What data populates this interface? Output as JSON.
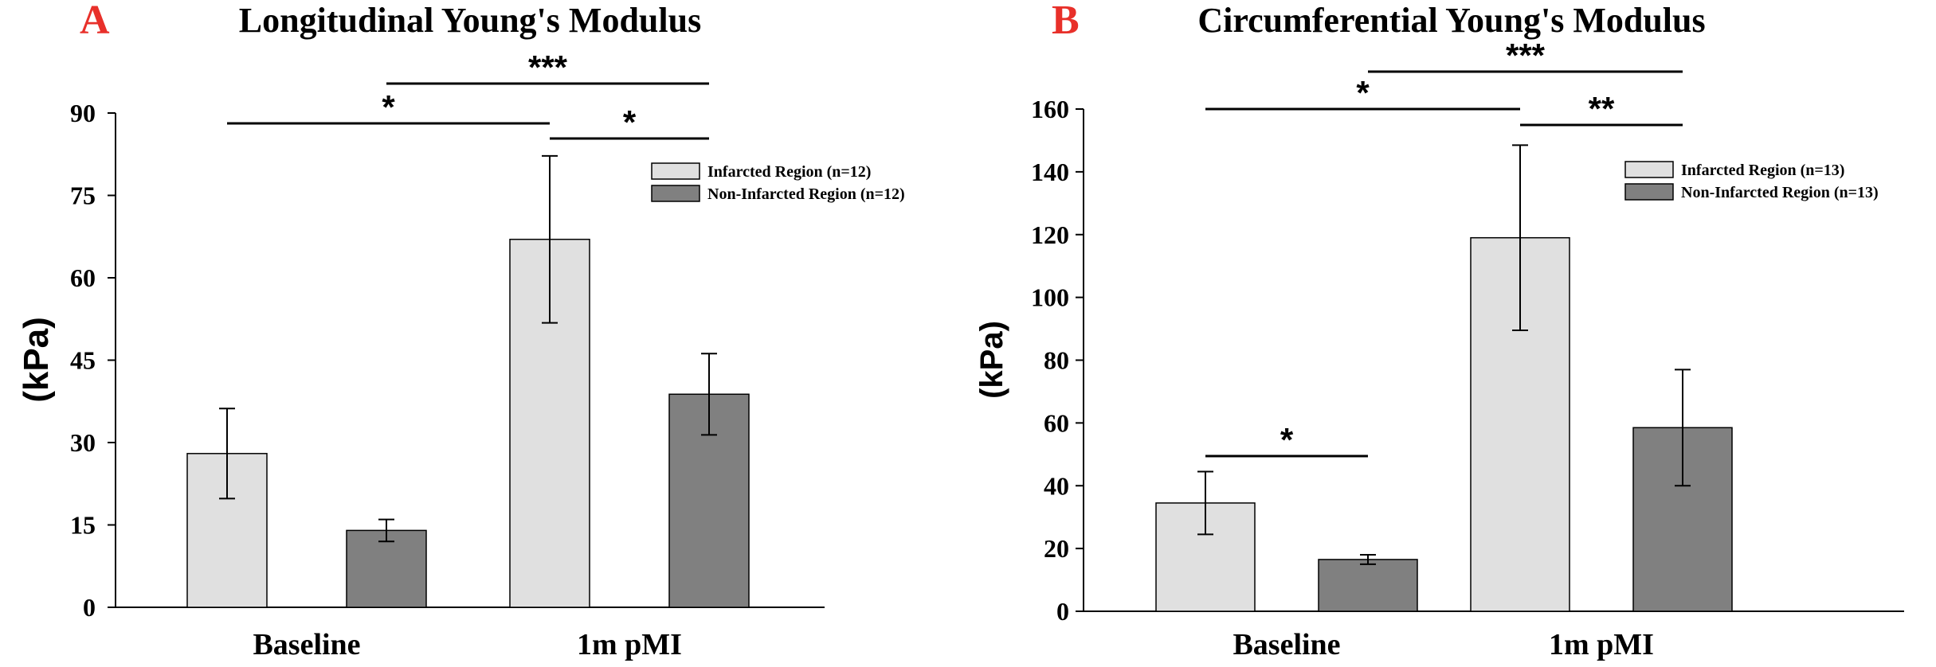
{
  "chart_data": [
    {
      "type": "bar",
      "panel_letter": "A",
      "title": "Longitudinal Young's Modulus",
      "ylabel": "(kPa)",
      "xlabel": "",
      "ylim": [
        0,
        90
      ],
      "yticks": [
        "0",
        "15",
        "30",
        "45",
        "60",
        "75",
        "90"
      ],
      "categories": [
        "Baseline",
        "1m pMI"
      ],
      "series": [
        {
          "name": "Infarcted Region (n=12)",
          "values": [
            28,
            67
          ],
          "errors": [
            8.2,
            15.2
          ],
          "color": "#e0e0e0"
        },
        {
          "name": "Non-Infarcted Region (n=12)",
          "values": [
            14,
            38.8
          ],
          "errors": [
            2,
            7.4
          ],
          "color": "#808080"
        }
      ],
      "significance": [
        {
          "label": "*",
          "from": "Baseline / Infarcted Region (n=12)",
          "to": "1m pMI / Infarcted Region (n=12)"
        },
        {
          "label": "***",
          "from": "Baseline / Non-Infarcted Region (n=12)",
          "to": "1m pMI / Non-Infarcted Region (n=12)"
        },
        {
          "label": "*",
          "from": "1m pMI / Infarcted Region (n=12)",
          "to": "1m pMI / Non-Infarcted Region (n=12)"
        }
      ],
      "legend_position": "top-right"
    },
    {
      "type": "bar",
      "panel_letter": "B",
      "title": "Circumferential Young's Modulus",
      "ylabel": "(kPa)",
      "xlabel": "",
      "ylim": [
        0,
        160
      ],
      "yticks": [
        "0",
        "20",
        "40",
        "60",
        "80",
        "100",
        "120",
        "140",
        "160"
      ],
      "categories": [
        "Baseline",
        "1m pMI"
      ],
      "series": [
        {
          "name": "Infarcted Region (n=13)",
          "values": [
            34.5,
            119
          ],
          "errors": [
            10,
            29.5
          ],
          "color": "#e0e0e0"
        },
        {
          "name": "Non-Infarcted Region (n=13)",
          "values": [
            16.5,
            58.5
          ],
          "errors": [
            1.5,
            18.5
          ],
          "color": "#808080"
        }
      ],
      "significance": [
        {
          "label": "*",
          "from": "Baseline / Infarcted Region (n=13)",
          "to": "Baseline / Non-Infarcted Region (n=13)"
        },
        {
          "label": "*",
          "from": "Baseline / Infarcted Region (n=13)",
          "to": "1m pMI / Infarcted Region (n=13)"
        },
        {
          "label": "***",
          "from": "Baseline / Non-Infarcted Region (n=13)",
          "to": "1m pMI / Non-Infarcted Region (n=13)"
        },
        {
          "label": "**",
          "from": "1m pMI / Infarcted Region (n=13)",
          "to": "1m pMI / Non-Infarcted Region (n=13)"
        }
      ],
      "legend_position": "top-right"
    }
  ],
  "colors": {
    "panel_letter": "#e8302a",
    "axis": "#000000",
    "bar_stroke": "#000000"
  }
}
